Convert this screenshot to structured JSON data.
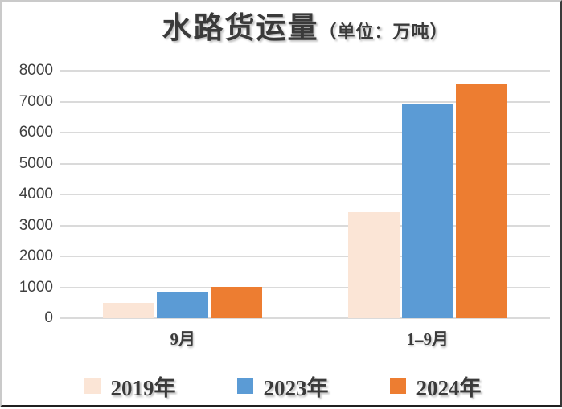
{
  "chart_data": {
    "type": "bar",
    "title": "水路货运量",
    "title_suffix": "（单位：万吨）",
    "categories": [
      "9月",
      "1–9月"
    ],
    "series": [
      {
        "name": "2019年",
        "color": "#fbe5d6",
        "values": [
          500,
          3430
        ]
      },
      {
        "name": "2023年",
        "color": "#5b9bd5",
        "values": [
          830,
          6930
        ]
      },
      {
        "name": "2024年",
        "color": "#ed7d31",
        "values": [
          1010,
          7560
        ]
      }
    ],
    "ylim": [
      0,
      8000
    ],
    "ytick_step": 1000,
    "ytick_labels": [
      "0",
      "1000",
      "2000",
      "3000",
      "4000",
      "5000",
      "6000",
      "7000",
      "8000"
    ],
    "grid": true,
    "legend_position": "bottom",
    "colors": {
      "gridline": "#dadada",
      "axis_text": "#3f3f3f",
      "title_text": "#3a3a3a",
      "background": "#ffffff"
    }
  }
}
